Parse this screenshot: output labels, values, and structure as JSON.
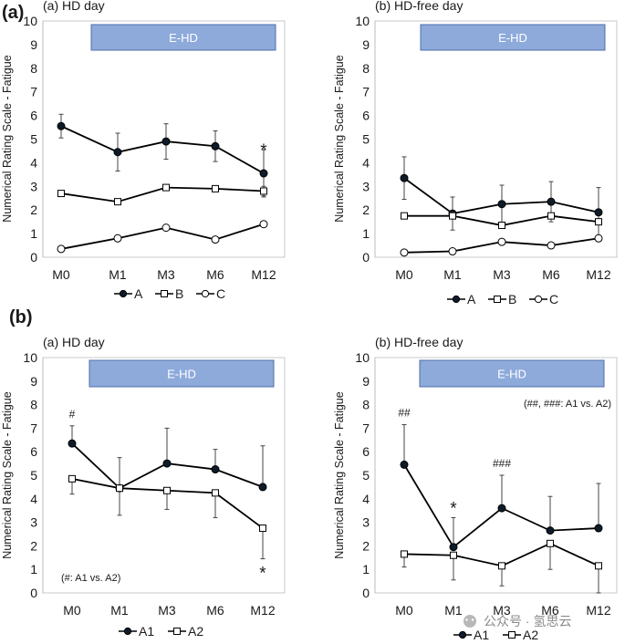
{
  "figure": {
    "panel_letters": [
      "(a)",
      "(b)"
    ],
    "watermark": "公众号 · 氢思云"
  },
  "chart_data": [
    {
      "type": "line",
      "panel": "(a)",
      "title": "(a) HD day",
      "band_label": "E-HD",
      "ylabel": "Numerical Rating Scale - Fatigue",
      "ylim": [
        0,
        10
      ],
      "yticks": [
        "0",
        "1",
        "2",
        "3",
        "4",
        "5",
        "6",
        "7",
        "8",
        "9",
        "10"
      ],
      "categories": [
        "M0",
        "M1",
        "M3",
        "M6",
        "M12"
      ],
      "series": [
        {
          "name": "A",
          "marker": "filled-circle",
          "values": [
            5.55,
            4.45,
            4.9,
            4.7,
            3.55
          ],
          "err": [
            0.5,
            0.8,
            0.75,
            0.65,
            1.0
          ]
        },
        {
          "name": "B",
          "marker": "square",
          "values": [
            2.7,
            2.35,
            2.95,
            2.9,
            2.8
          ],
          "err": [
            0,
            0,
            0,
            0,
            0.2
          ]
        },
        {
          "name": "C",
          "marker": "circle",
          "values": [
            0.35,
            0.8,
            1.25,
            0.75,
            1.4
          ],
          "err": [
            0,
            0,
            0,
            0,
            0
          ]
        }
      ],
      "legend": [
        "A",
        "B",
        "C"
      ],
      "annotations": [
        {
          "text": "*",
          "category": "M12"
        }
      ]
    },
    {
      "type": "line",
      "panel": "(a)",
      "title": "(b) HD-free day",
      "band_label": "E-HD",
      "ylabel": "Numerical Rating Scale - Fatigue",
      "ylim": [
        0,
        10
      ],
      "yticks": [
        "0",
        "1",
        "2",
        "3",
        "4",
        "5",
        "6",
        "7",
        "8",
        "9",
        "10"
      ],
      "categories": [
        "M0",
        "M1",
        "M3",
        "M6",
        "M12"
      ],
      "series": [
        {
          "name": "A",
          "marker": "filled-circle",
          "values": [
            3.35,
            1.85,
            2.25,
            2.35,
            1.9
          ],
          "err": [
            0.9,
            0.7,
            0.8,
            0.85,
            1.05
          ]
        },
        {
          "name": "B",
          "marker": "square",
          "values": [
            1.75,
            1.75,
            1.35,
            1.75,
            1.5
          ],
          "err": [
            0,
            0,
            0,
            0,
            0
          ]
        },
        {
          "name": "C",
          "marker": "circle",
          "values": [
            0.2,
            0.25,
            0.65,
            0.5,
            0.8
          ],
          "err": [
            0,
            0,
            0,
            0,
            0
          ]
        }
      ],
      "legend": [
        "A",
        "B",
        "C"
      ],
      "annotations": []
    },
    {
      "type": "line",
      "panel": "(b)",
      "title": "(a) HD day",
      "band_label": "E-HD",
      "ylabel": "Numerical Rating Scale - Fatigue",
      "ylim": [
        0,
        10
      ],
      "yticks": [
        "0",
        "1",
        "2",
        "3",
        "4",
        "5",
        "6",
        "7",
        "8",
        "9",
        "10"
      ],
      "categories": [
        "M0",
        "M1",
        "M3",
        "M6",
        "M12"
      ],
      "series": [
        {
          "name": "A1",
          "marker": "filled-circle",
          "values": [
            6.35,
            4.45,
            5.5,
            5.25,
            4.5
          ],
          "err_up": [
            0.75,
            1.3,
            1.5,
            0.85,
            1.75
          ],
          "err_down": [
            0,
            0,
            0,
            0,
            0
          ]
        },
        {
          "name": "A2",
          "marker": "square",
          "values": [
            4.85,
            4.45,
            4.35,
            4.25,
            2.75
          ],
          "err_up": [
            0,
            0,
            0,
            0,
            0
          ],
          "err_down": [
            0.65,
            1.15,
            0.8,
            1.05,
            1.3
          ]
        }
      ],
      "legend": [
        "A1",
        "A2"
      ],
      "annotations": [
        {
          "text": "#",
          "category": "M0"
        },
        {
          "text": "*",
          "category": "M12"
        },
        {
          "text": "(#: A1 vs. A2)",
          "position": "bottom-left"
        }
      ]
    },
    {
      "type": "line",
      "panel": "(b)",
      "title": "(b) HD-free day",
      "band_label": "E-HD",
      "ylabel": "Numerical Rating Scale - Fatigue",
      "ylim": [
        0,
        10
      ],
      "yticks": [
        "0",
        "1",
        "2",
        "3",
        "4",
        "5",
        "6",
        "7",
        "8",
        "9",
        "10"
      ],
      "categories": [
        "M0",
        "M1",
        "M3",
        "M6",
        "M12"
      ],
      "series": [
        {
          "name": "A1",
          "marker": "filled-circle",
          "values": [
            5.45,
            1.95,
            3.6,
            2.65,
            2.75
          ],
          "err_up": [
            1.7,
            1.25,
            1.4,
            1.45,
            1.9
          ],
          "err_down": [
            0,
            0,
            0,
            0,
            0
          ]
        },
        {
          "name": "A2",
          "marker": "square",
          "values": [
            1.65,
            1.6,
            1.15,
            2.1,
            1.15
          ],
          "err_up": [
            0,
            0,
            0,
            0,
            0
          ],
          "err_down": [
            0.55,
            1.05,
            0.85,
            1.1,
            1.15
          ]
        }
      ],
      "legend": [
        "A1",
        "A2"
      ],
      "annotations": [
        {
          "text": "##",
          "category": "M0"
        },
        {
          "text": "*",
          "category": "M1"
        },
        {
          "text": "###",
          "category": "M3"
        },
        {
          "text": "(##, ###: A1 vs. A2)",
          "position": "top-right"
        }
      ]
    }
  ]
}
